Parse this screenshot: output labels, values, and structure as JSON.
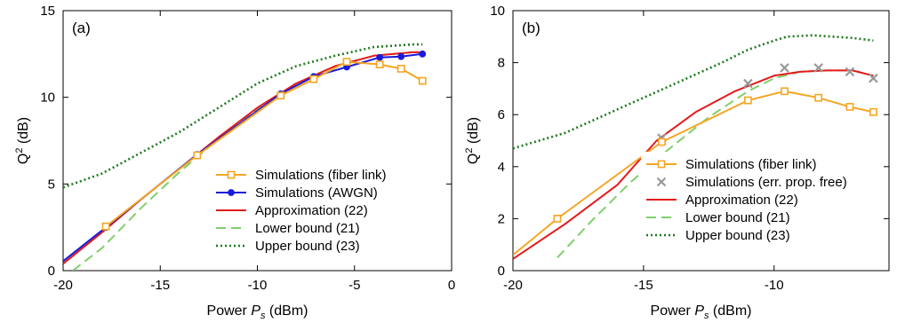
{
  "chart_data": [
    {
      "type": "line",
      "panel_label": "(a)",
      "xlabel": "Power P_s (dBm)",
      "xlabel_main": "Power ",
      "xlabel_var": "P",
      "xlabel_sub": "s",
      "xlabel_unit": " (dBm)",
      "ylabel": "Q^2 (dB)",
      "ylabel_main": "Q",
      "ylabel_sup": "2",
      "ylabel_unit": " (dB)",
      "xlim": [
        -20,
        0
      ],
      "ylim": [
        0,
        15
      ],
      "xticks": [
        -20,
        -15,
        -10,
        -5,
        0
      ],
      "yticks": [
        0,
        5,
        10,
        15
      ],
      "legend_position": "bottom-right",
      "series": [
        {
          "name": "Simulations (fiber link)",
          "color": "#f5a623",
          "style": "solid",
          "marker": "square",
          "x": [
            -17.8,
            -13.1,
            -8.8,
            -7.1,
            -5.4,
            -3.7,
            -2.6,
            -1.5
          ],
          "y": [
            2.55,
            6.65,
            10.1,
            11.05,
            12.05,
            11.9,
            11.65,
            10.95
          ]
        },
        {
          "name": "Simulations (AWGN)",
          "color": "#1a1adb",
          "style": "solid",
          "marker": "circle",
          "x": [
            -20,
            -17.8,
            -13.1,
            -8.8,
            -7.1,
            -5.4,
            -3.7,
            -2.6,
            -1.5
          ],
          "y": [
            0.55,
            2.5,
            6.7,
            10.2,
            11.2,
            11.75,
            12.3,
            12.35,
            12.5
          ]
        },
        {
          "name": "Approximation (22)",
          "color": "#e41a1c",
          "style": "solid",
          "marker": "none",
          "x": [
            -20,
            -18,
            -16,
            -14,
            -12,
            -10,
            -8,
            -6,
            -4,
            -2,
            -1.5
          ],
          "y": [
            0.4,
            2.2,
            4.1,
            5.9,
            7.7,
            9.4,
            10.8,
            11.8,
            12.4,
            12.6,
            12.6
          ]
        },
        {
          "name": "Lower bound (21)",
          "color": "#7fcf6c",
          "style": "dashed",
          "marker": "none",
          "x": [
            -19.5,
            -18,
            -16,
            -14,
            -12,
            -10,
            -8,
            -6,
            -4,
            -2,
            -1.5
          ],
          "y": [
            0,
            1.3,
            3.6,
            5.7,
            7.6,
            9.35,
            10.8,
            11.8,
            12.4,
            12.6,
            12.6
          ]
        },
        {
          "name": "Upper bound (23)",
          "color": "#1e7b1e",
          "style": "dotted",
          "marker": "none",
          "x": [
            -20,
            -18,
            -16,
            -14,
            -12,
            -10,
            -8,
            -6,
            -4,
            -2,
            -1.5
          ],
          "y": [
            4.8,
            5.6,
            6.8,
            8.0,
            9.4,
            10.8,
            11.8,
            12.4,
            12.9,
            13.05,
            13.05
          ]
        }
      ]
    },
    {
      "type": "line",
      "panel_label": "(b)",
      "xlabel": "Power P_s (dBm)",
      "xlabel_main": "Power ",
      "xlabel_var": "P",
      "xlabel_sub": "s",
      "xlabel_unit": " (dBm)",
      "ylabel": "Q^2 (dB)",
      "ylabel_main": "Q",
      "ylabel_sup": "2",
      "ylabel_unit": " (dB)",
      "xlim": [
        -20,
        -5.6
      ],
      "ylim": [
        0,
        10
      ],
      "xticks": [
        -20,
        -15,
        -10
      ],
      "yticks": [
        0,
        2,
        4,
        6,
        8,
        10
      ],
      "legend_position": "bottom-right",
      "series": [
        {
          "name": "Simulations (fiber link)",
          "color": "#f5a623",
          "style": "solid",
          "marker": "square",
          "x": [
            -20,
            -18.3,
            -14.3,
            -11,
            -9.6,
            -8.3,
            -7.1,
            -6.2
          ],
          "y": [
            0.6,
            2.0,
            4.95,
            6.55,
            6.9,
            6.65,
            6.3,
            6.1
          ]
        },
        {
          "name": "Simulations (err. prop. free)",
          "color": "#999999",
          "style": "none",
          "marker": "x",
          "x": [
            -14.3,
            -11,
            -9.6,
            -8.3,
            -7.1,
            -6.2
          ],
          "y": [
            5.1,
            7.2,
            7.8,
            7.8,
            7.65,
            7.4
          ]
        },
        {
          "name": "Approximation (22)",
          "color": "#e41a1c",
          "style": "solid",
          "marker": "none",
          "x": [
            -20,
            -18,
            -16,
            -14.5,
            -13,
            -11.5,
            -10,
            -9,
            -8,
            -7,
            -6.2
          ],
          "y": [
            0.45,
            1.8,
            3.3,
            5.0,
            6.1,
            6.9,
            7.5,
            7.65,
            7.7,
            7.7,
            7.5
          ]
        },
        {
          "name": "Lower bound (21)",
          "color": "#7fcf6c",
          "style": "dashed",
          "marker": "none",
          "x": [
            -18.3,
            -17,
            -15.5,
            -14,
            -12.5,
            -11,
            -10,
            -9,
            -8,
            -7,
            -6.2
          ],
          "y": [
            0.5,
            1.9,
            3.4,
            4.7,
            5.9,
            6.9,
            7.4,
            7.65,
            7.7,
            7.7,
            7.5
          ]
        },
        {
          "name": "Upper bound (23)",
          "color": "#1e7b1e",
          "style": "dotted",
          "marker": "none",
          "x": [
            -20,
            -18,
            -16,
            -14,
            -12,
            -11,
            -10,
            -9.5,
            -8.5,
            -7,
            -6.2
          ],
          "y": [
            4.7,
            5.3,
            6.2,
            7.1,
            8.0,
            8.5,
            8.85,
            9.0,
            9.05,
            8.95,
            8.85
          ]
        }
      ]
    }
  ]
}
